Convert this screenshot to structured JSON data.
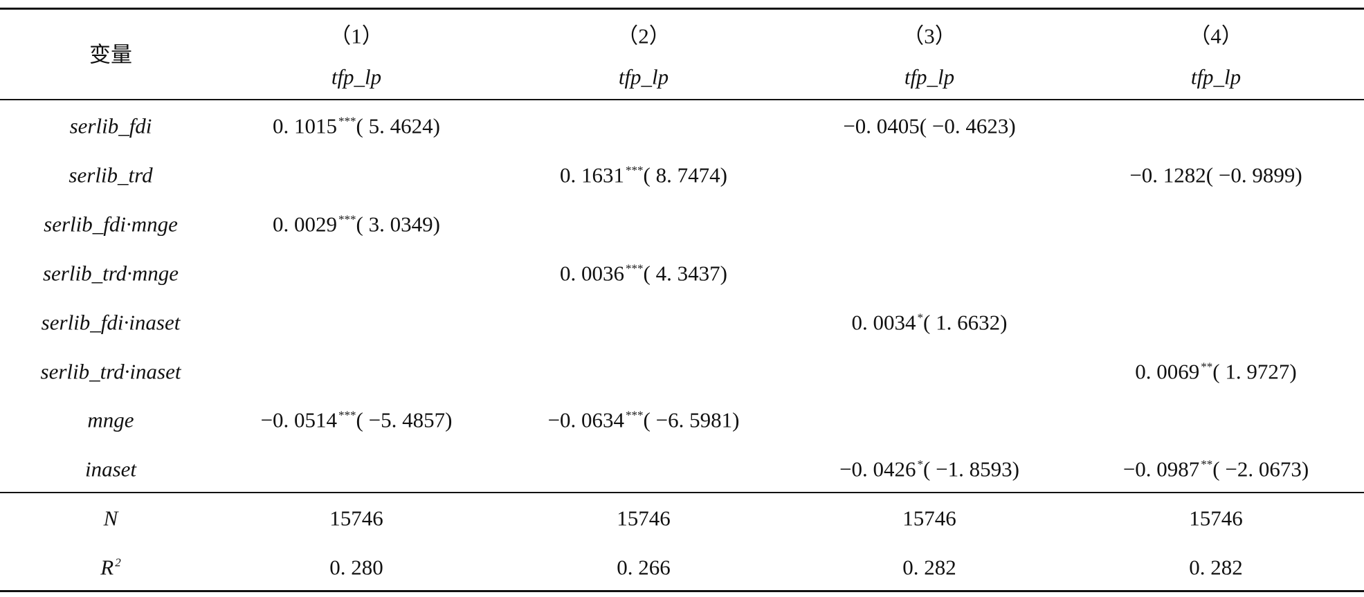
{
  "header": {
    "variable": "变量",
    "columns": [
      {
        "number": "（1）",
        "dependent": "tfp_lp"
      },
      {
        "number": "（2）",
        "dependent": "tfp_lp"
      },
      {
        "number": "（3）",
        "dependent": "tfp_lp"
      },
      {
        "number": "（4）",
        "dependent": "tfp_lp"
      }
    ]
  },
  "rows": [
    {
      "label": "serlib_fdi",
      "cells": [
        {
          "coef": "0. 1015",
          "stars": "***",
          "t": "( 5. 4624)"
        },
        null,
        {
          "coef": "−0. 0405( −0. 4623)"
        },
        null
      ]
    },
    {
      "label": "serlib_trd",
      "cells": [
        null,
        {
          "coef": "0. 1631",
          "stars": "***",
          "t": "( 8. 7474)"
        },
        null,
        {
          "coef": "−0. 1282( −0. 9899)"
        }
      ]
    },
    {
      "label": "serlib_fdi·mnge",
      "cells": [
        {
          "coef": "0. 0029",
          "stars": "***",
          "t": "( 3. 0349)"
        },
        null,
        null,
        null
      ]
    },
    {
      "label": "serlib_trd·mnge",
      "cells": [
        null,
        {
          "coef": "0. 0036",
          "stars": "***",
          "t": "( 4. 3437)"
        },
        null,
        null
      ]
    },
    {
      "label": "serlib_fdi·inaset",
      "cells": [
        null,
        null,
        {
          "coef": "0. 0034",
          "stars": "*",
          "t": "( 1. 6632)"
        },
        null
      ]
    },
    {
      "label": "serlib_trd·inaset",
      "cells": [
        null,
        null,
        null,
        {
          "coef": "0. 0069",
          "stars": "**",
          "t": "( 1. 9727)"
        }
      ]
    },
    {
      "label": "mnge",
      "cells": [
        {
          "coef": "−0. 0514",
          "stars": "***",
          "t": "( −5. 4857)"
        },
        {
          "coef": "−0. 0634",
          "stars": "***",
          "t": "( −6. 5981)"
        },
        null,
        null
      ]
    },
    {
      "label": "inaset",
      "cells": [
        null,
        null,
        {
          "coef": "−0. 0426",
          "stars": "*",
          "t": "( −1. 8593)"
        },
        {
          "coef": "−0. 0987",
          "stars": "**",
          "t": "( −2. 0673)"
        }
      ]
    }
  ],
  "stats": [
    {
      "label": "N",
      "values": [
        "15746",
        "15746",
        "15746",
        "15746"
      ]
    },
    {
      "label": "R",
      "label_sup": "2",
      "values": [
        "0. 280",
        "0. 266",
        "0. 282",
        "0. 282"
      ]
    }
  ]
}
